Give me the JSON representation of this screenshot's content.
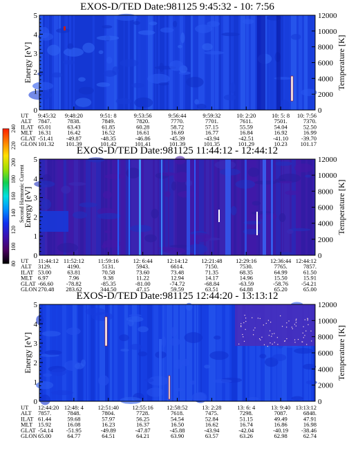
{
  "chart_data": [
    {
      "type": "heatmap",
      "title_parts": [
        "EXOS-D/TED",
        "Date:981125",
        "9:45:32 - 10: 7:56"
      ],
      "ylabel": "Energy [eV]",
      "ylim": [
        0,
        5
      ],
      "yticks": [
        "0",
        "1",
        "2",
        "3",
        "4",
        "5"
      ],
      "y2label": "Temperature [K]",
      "y2lim": [
        0,
        12000
      ],
      "y2ticks": [
        "0",
        "2000",
        "4000",
        "6000",
        "8000",
        "10000",
        "12000"
      ],
      "ephem_labels": [
        "UT",
        "ALT",
        "ILAT",
        "MLT",
        "GLAT",
        "GLON"
      ],
      "ephem_cols": [
        [
          "9:45:32",
          "7847.",
          "65.01",
          "16.31",
          "-51.41",
          "101.32"
        ],
        [
          "9:48:20",
          "7838.",
          "63.43",
          "16.42",
          "-49.87",
          "101.39"
        ],
        [
          "9:51: 8",
          "7849.",
          "61.85",
          "16.52",
          "-48.35",
          "101.42"
        ],
        [
          "9:53:56",
          "7820.",
          "60.28",
          "16.61",
          "-46.86",
          "101.41"
        ],
        [
          "9:56:44",
          "7770.",
          "58.72",
          "16.69",
          "-45.39",
          "101.39"
        ],
        [
          "9:59:32",
          "7701.",
          "57.15",
          "16.77",
          "-43.94",
          "101.35"
        ],
        [
          "10: 2:20",
          "7611.",
          "55.59",
          "16.84",
          "-42.51",
          "101.29"
        ],
        [
          "10: 5: 8",
          "7501.",
          "54.04",
          "16.92",
          "-41.10",
          "10.23"
        ],
        [
          "10: 7:56",
          "7370.",
          "52.50",
          "16.99",
          "-39.70",
          "101.17"
        ]
      ]
    },
    {
      "type": "heatmap",
      "title_parts": [
        "EXOS-D/TED",
        "Date:981125",
        "11:44:12 - 12:44:12"
      ],
      "ylabel": "Energy [eV]",
      "ylim": [
        0,
        5
      ],
      "yticks": [
        "0",
        "1",
        "2",
        "3",
        "4",
        "5"
      ],
      "y2label": "Temperature [K]",
      "y2lim": [
        0,
        12000
      ],
      "y2ticks": [
        "0",
        "2000",
        "4000",
        "6000",
        "8000",
        "10000",
        "12000"
      ],
      "ephem_labels": [
        "UT",
        "ALT",
        "ILAT",
        "MLT",
        "GLAT",
        "GLON"
      ],
      "ephem_cols": [
        [
          "11:44:12",
          "3129.",
          "53.00",
          "6.97",
          "-66.60",
          "270.48"
        ],
        [
          "11:52:12",
          "4190.",
          "63.81",
          "7.96",
          "-78.82",
          "283.62"
        ],
        [
          "11:59:16",
          "5131.",
          "70.58",
          "9.38",
          "-85.35",
          "344.50"
        ],
        [
          "12: 6:44",
          "5943.",
          "73.60",
          "11.22",
          "-81.00",
          "47.15"
        ],
        [
          "12:14:12",
          "6614.",
          "73.48",
          "12.94",
          "-74.72",
          "59.59"
        ],
        [
          "12:21:48",
          "7150.",
          "71.35",
          "14.17",
          "-68.84",
          "63.51"
        ],
        [
          "12:29:16",
          "7530.",
          "68.35",
          "14.96",
          "-63.59",
          "64.88"
        ],
        [
          "12:36:44",
          "7765.",
          "64.99",
          "15.50",
          "-58.76",
          "65.20"
        ],
        [
          "12:44:12",
          "7857.",
          "61.50",
          "15.91",
          "-54.21",
          "65.00"
        ]
      ]
    },
    {
      "type": "heatmap",
      "title_parts": [
        "EXOS-D/TED",
        "Date:981125",
        "12:44:20 - 13:13:12"
      ],
      "ylabel": "Energy [eV]",
      "ylim": [
        0,
        5
      ],
      "yticks": [
        "0",
        "1",
        "2",
        "3",
        "4",
        "5"
      ],
      "y2label": "Temperature [K]",
      "y2lim": [
        0,
        12000
      ],
      "y2ticks": [
        "0",
        "2000",
        "4000",
        "6000",
        "8000",
        "10000",
        "12000"
      ],
      "ephem_labels": [
        "UT",
        "ALT",
        "ILAT",
        "MLT",
        "GLAT",
        "GLON"
      ],
      "ephem_cols": [
        [
          "12:44:20",
          "7857.",
          "61.44",
          "15.92",
          "-54.14",
          "65.00"
        ],
        [
          "12:48: 4",
          "7848.",
          "59.68",
          "16.08",
          "-51.95",
          "64.77"
        ],
        [
          "12:51:40",
          "7804.",
          "57.97",
          "16.23",
          "-49.89",
          "64.51"
        ],
        [
          "12:55:16",
          "7728.",
          "56.25",
          "16.37",
          "-47.87",
          "64.21"
        ],
        [
          "12:58:52",
          "7618.",
          "54.54",
          "16.50",
          "-45.88",
          "63.90"
        ],
        [
          "13: 2:28",
          "7475.",
          "52.84",
          "16.62",
          "-43.94",
          "63.57"
        ],
        [
          "13: 6: 4",
          "7298.",
          "51.15",
          "16.74",
          "-42.04",
          "63.26"
        ],
        [
          "13: 9:40",
          "7087.",
          "49.49",
          "16.86",
          "-40.19",
          "62.98"
        ],
        [
          "13:13:12",
          "6848.",
          "47.91",
          "16.98",
          "-38.46",
          "62.74"
        ]
      ]
    }
  ],
  "colorbar": {
    "label": "Second Harmonic Current",
    "ticks": [
      "80",
      "100",
      "120",
      "140",
      "160",
      "180",
      "200",
      "220",
      "240"
    ],
    "colors": [
      "#000000",
      "#4a0060",
      "#3a10b0",
      "#1030f0",
      "#0090ff",
      "#00e0e0",
      "#10d050",
      "#a0e000",
      "#ffe000",
      "#ff8000",
      "#ff2000"
    ]
  }
}
